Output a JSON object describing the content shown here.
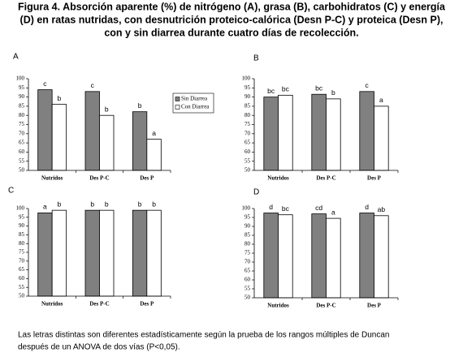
{
  "title": [
    "Figura 4. Absorción aparente (%) de nitrógeno (A), grasa (B), carbohidratos (C) y energía",
    "(D) en ratas nutridas, con desnutrición proteico-calórica (Desn P-C) y proteica (Desn P),",
    "con y sin diarrea durante cuatro días de recolección."
  ],
  "footnote": [
    "Las letras distintas son diferentes estadísticamente según la prueba de los rangos múltiples de Duncan",
    "después de un ANOVA de dos vías (P<0,05)."
  ],
  "chart_data": [
    {
      "type": "bar",
      "label": "A",
      "categories": [
        "Nutridos",
        "Des P-C",
        "Des P"
      ],
      "ylim": [
        50,
        100
      ],
      "yticks": [
        50,
        55,
        60,
        65,
        70,
        75,
        80,
        85,
        90,
        95,
        100
      ],
      "legend": true,
      "series": [
        {
          "name": "Sin Diarrea",
          "color": "#808080",
          "values": [
            94,
            93,
            82
          ],
          "significance": [
            "c",
            "c",
            "b"
          ]
        },
        {
          "name": "Con Diarrea",
          "color": "#ffffff",
          "values": [
            86,
            80,
            67
          ],
          "significance": [
            "b",
            "b",
            "a"
          ]
        }
      ]
    },
    {
      "type": "bar",
      "label": "B",
      "categories": [
        "Nutridos",
        "Des P-C",
        "Des P"
      ],
      "ylim": [
        50,
        100
      ],
      "yticks": [
        50,
        55,
        60,
        65,
        70,
        75,
        80,
        85,
        90,
        95,
        100
      ],
      "legend": false,
      "series": [
        {
          "color": "#808080",
          "values": [
            90,
            91.5,
            93
          ],
          "significance": [
            "bc",
            "bc",
            "c"
          ]
        },
        {
          "color": "#ffffff",
          "values": [
            91,
            89,
            85
          ],
          "significance": [
            "bc",
            "b",
            "a"
          ]
        }
      ]
    },
    {
      "type": "bar",
      "label": "C",
      "categories": [
        "Nutridos",
        "Des P-C",
        "Des P"
      ],
      "ylim": [
        50,
        100
      ],
      "yticks": [
        50,
        55,
        60,
        65,
        70,
        75,
        80,
        85,
        90,
        95,
        100
      ],
      "legend": false,
      "series": [
        {
          "color": "#808080",
          "values": [
            97.5,
            99,
            99
          ],
          "significance": [
            "a",
            "b",
            "b"
          ]
        },
        {
          "color": "#ffffff",
          "values": [
            99,
            99,
            99
          ],
          "significance": [
            "b",
            "b",
            "b"
          ]
        }
      ]
    },
    {
      "type": "bar",
      "label": "D",
      "categories": [
        "Nutridos",
        "Des P-C",
        "Des P"
      ],
      "ylim": [
        50,
        100
      ],
      "yticks": [
        50,
        55,
        60,
        65,
        70,
        75,
        80,
        85,
        90,
        95,
        100
      ],
      "legend": false,
      "series": [
        {
          "color": "#808080",
          "values": [
            97.5,
            97,
            97.5
          ],
          "significance": [
            "d",
            "cd",
            "d"
          ]
        },
        {
          "color": "#ffffff",
          "values": [
            96.5,
            94.5,
            96
          ],
          "significance": [
            "bc",
            "a",
            "ab"
          ]
        }
      ]
    }
  ]
}
